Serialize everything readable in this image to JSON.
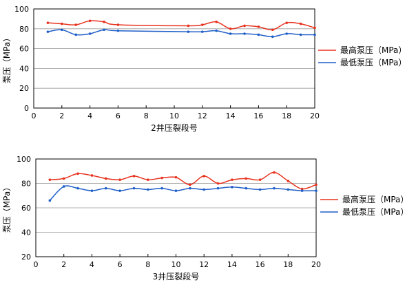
{
  "chart_data": [
    {
      "type": "line",
      "xlabel": "2井压裂段号",
      "ylabel": "泵压（MPa）",
      "xlim": [
        0,
        20
      ],
      "ylim": [
        0,
        100
      ],
      "xticks": [
        "0",
        "2",
        "4",
        "6",
        "8",
        "10",
        "12",
        "14",
        "16",
        "18",
        "20"
      ],
      "yticks": [
        "0",
        "20",
        "40",
        "60",
        "80",
        "100"
      ],
      "grid": "horizontal",
      "legend_position": "right",
      "series": [
        {
          "name": "最高泵压（MPa）",
          "color": "#e8321e",
          "points": [
            [
              1,
              86
            ],
            [
              2,
              85
            ],
            [
              3,
              84
            ],
            [
              4,
              88
            ],
            [
              5,
              87
            ],
            [
              6,
              84
            ],
            [
              11,
              83
            ],
            [
              12,
              84
            ],
            [
              13,
              87
            ],
            [
              14,
              80
            ],
            [
              15,
              83
            ],
            [
              16,
              82
            ],
            [
              17,
              79
            ],
            [
              18,
              86
            ],
            [
              19,
              85
            ],
            [
              20,
              81
            ]
          ]
        },
        {
          "name": "最低泵压（MPa）",
          "color": "#1f5fc8",
          "points": [
            [
              1,
              77
            ],
            [
              2,
              79
            ],
            [
              3,
              74
            ],
            [
              4,
              75
            ],
            [
              5,
              79
            ],
            [
              6,
              78
            ],
            [
              11,
              77
            ],
            [
              12,
              77
            ],
            [
              13,
              78
            ],
            [
              14,
              75
            ],
            [
              15,
              75
            ],
            [
              16,
              74
            ],
            [
              17,
              72
            ],
            [
              18,
              75
            ],
            [
              19,
              74
            ],
            [
              20,
              74
            ]
          ]
        }
      ]
    },
    {
      "type": "line",
      "xlabel": "3井压裂段号",
      "ylabel": "泵压（MPa）",
      "xlim": [
        0,
        20
      ],
      "ylim": [
        20,
        100
      ],
      "xticks": [
        "0",
        "2",
        "4",
        "6",
        "8",
        "10",
        "12",
        "14",
        "16",
        "18",
        "20"
      ],
      "yticks": [
        "20",
        "40",
        "60",
        "80",
        "100"
      ],
      "grid": "horizontal",
      "legend_position": "right",
      "series": [
        {
          "name": "最高泵压（MPa）",
          "color": "#e8321e",
          "points": [
            [
              1,
              83
            ],
            [
              2,
              84
            ],
            [
              3,
              88
            ],
            [
              4,
              86.5
            ],
            [
              5,
              84
            ],
            [
              6,
              83
            ],
            [
              7,
              86
            ],
            [
              8,
              83
            ],
            [
              9,
              84.5
            ],
            [
              10,
              85
            ],
            [
              11,
              79
            ],
            [
              12,
              86
            ],
            [
              13,
              80
            ],
            [
              14,
              83
            ],
            [
              15,
              84
            ],
            [
              16,
              83
            ],
            [
              17,
              89
            ],
            [
              18,
              82
            ],
            [
              19,
              75.5
            ],
            [
              20,
              79
            ]
          ]
        },
        {
          "name": "最低泵压（MPa）",
          "color": "#1f5fc8",
          "points": [
            [
              1,
              66
            ],
            [
              2,
              77.5
            ],
            [
              3,
              76
            ],
            [
              4,
              74
            ],
            [
              5,
              76
            ],
            [
              6,
              74
            ],
            [
              7,
              76
            ],
            [
              8,
              75
            ],
            [
              9,
              76
            ],
            [
              10,
              74
            ],
            [
              11,
              76
            ],
            [
              12,
              75
            ],
            [
              13,
              76
            ],
            [
              14,
              77
            ],
            [
              15,
              76
            ],
            [
              16,
              75
            ],
            [
              17,
              76
            ],
            [
              18,
              75
            ],
            [
              19,
              74
            ],
            [
              20,
              74
            ]
          ]
        }
      ]
    }
  ]
}
